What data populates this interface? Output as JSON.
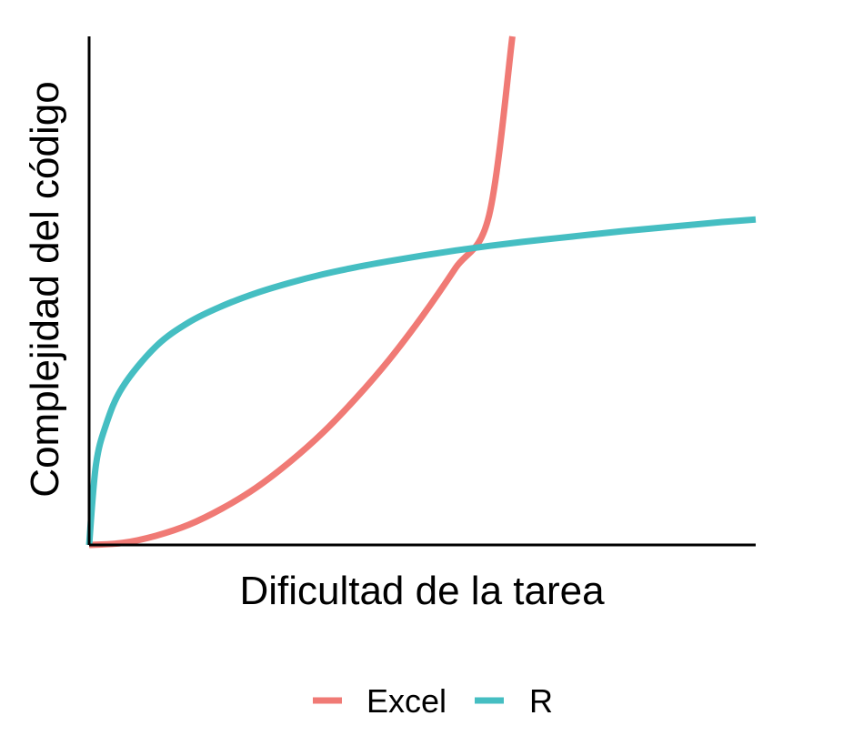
{
  "chart_data": {
    "type": "line",
    "title": "",
    "xlabel": "Dificultad de la tarea",
    "ylabel": "Complejidad del código",
    "xlim": [
      0,
      1
    ],
    "ylim": [
      0,
      1
    ],
    "grid": false,
    "legend_position": "bottom",
    "series": [
      {
        "name": "Excel",
        "color": "#F07A75",
        "x": [
          0,
          0.05,
          0.1,
          0.15,
          0.2,
          0.25,
          0.3,
          0.35,
          0.4,
          0.45,
          0.5,
          0.55,
          0.6,
          0.635
        ],
        "y": [
          0,
          0.004,
          0.018,
          0.04,
          0.072,
          0.112,
          0.162,
          0.22,
          0.288,
          0.364,
          0.45,
          0.545,
          0.648,
          1.0
        ]
      },
      {
        "name": "R",
        "color": "#45BEC2",
        "x": [
          0,
          0.01,
          0.025,
          0.05,
          0.1,
          0.15,
          0.2,
          0.25,
          0.3,
          0.35,
          0.4,
          0.45,
          0.5,
          0.55,
          0.6,
          0.65,
          0.7,
          0.75,
          0.8,
          0.85,
          0.9,
          0.95,
          1.0
        ],
        "y": [
          0,
          0.155,
          0.235,
          0.31,
          0.39,
          0.438,
          0.47,
          0.495,
          0.515,
          0.532,
          0.546,
          0.558,
          0.569,
          0.579,
          0.588,
          0.596,
          0.603,
          0.61,
          0.617,
          0.623,
          0.629,
          0.635,
          0.64
        ]
      }
    ]
  }
}
